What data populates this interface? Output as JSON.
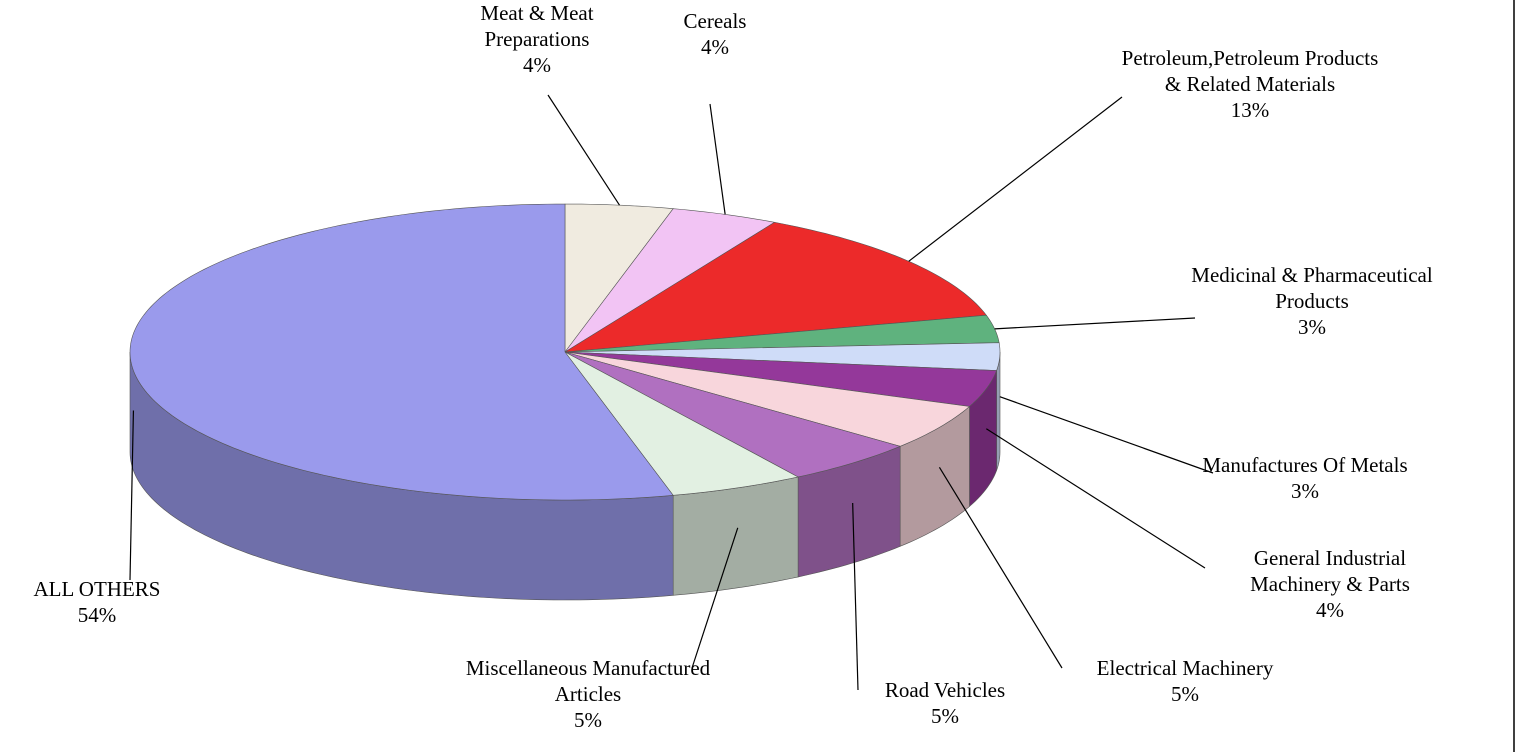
{
  "chart_data": {
    "type": "pie",
    "categories": [
      "Meat & Meat Preparations",
      "Cereals",
      "Petroleum,Petroleum Products & Related Materials",
      "Medicinal & Pharmaceutical Products",
      "Manufactures Of Metals",
      "General Industrial Machinery & Parts",
      "Electrical Machinery",
      "Road Vehicles",
      "Miscellaneous Manufactured Articles",
      "ALL OTHERS"
    ],
    "values": [
      4,
      4,
      13,
      3,
      3,
      4,
      5,
      5,
      5,
      54
    ],
    "value_labels": [
      "4%",
      "4%",
      "13%",
      "3%",
      "3%",
      "4%",
      "5%",
      "5%",
      "5%",
      "54%"
    ],
    "colors": [
      "#f0ebe0",
      "#f2c4f4",
      "#ec2a2a",
      "#5fb27e",
      "#cfdcf8",
      "#94389a",
      "#f8d6dc",
      "#b070c0",
      "#e2f0e2",
      "#9a9aec"
    ]
  }
}
